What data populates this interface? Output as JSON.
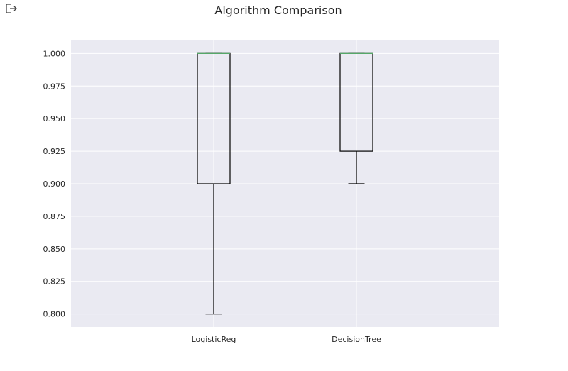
{
  "output_icon": "output-arrow-icon",
  "chart_data": {
    "type": "box",
    "title": "Algorithm Comparison",
    "xlabel": "",
    "ylabel": "",
    "categories": [
      "LogisticReg",
      "DecisionTree"
    ],
    "boxes": [
      {
        "whisker_low": 0.8,
        "q1": 0.9,
        "median": 1.0,
        "q3": 1.0,
        "whisker_high": 1.0
      },
      {
        "whisker_low": 0.9,
        "q1": 0.925,
        "median": 1.0,
        "q3": 1.0,
        "whisker_high": 1.0
      }
    ],
    "ylim": [
      0.79,
      1.01
    ],
    "yticks": [
      1.0,
      0.975,
      0.95,
      0.925,
      0.9,
      0.875,
      0.85,
      0.825,
      0.8
    ],
    "ytick_labels": [
      "1.000",
      "0.975",
      "0.950",
      "0.925",
      "0.900",
      "0.875",
      "0.850",
      "0.825",
      "0.800"
    ],
    "grid": true,
    "colors": {
      "plot_bg": "#eaeaf2",
      "grid": "#ffffff",
      "box": "#000000",
      "median": "#55a868"
    }
  }
}
